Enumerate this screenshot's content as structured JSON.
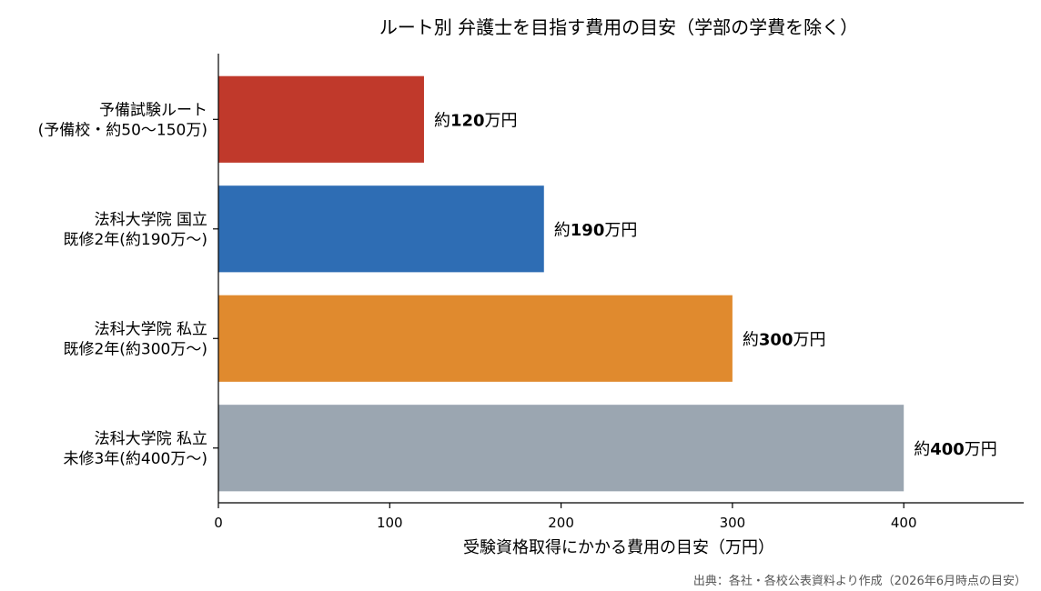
{
  "chart_data": {
    "type": "bar",
    "orientation": "horizontal",
    "title": "ルート別 弁護士を目指す費用の目安（学部の学費を除く）",
    "xlabel": "受験資格取得にかかる費用の目安（万円）",
    "ylabel": "",
    "source": "出典：各社・各校公表資料より作成（2026年6月時点の目安）",
    "categories": [
      [
        "予備試験ルート",
        "(予備校・約50〜150万)"
      ],
      [
        "法科大学院 国立",
        "既修2年(約190万〜)"
      ],
      [
        "法科大学院 私立",
        "既修2年(約300万〜)"
      ],
      [
        "法科大学院 私立",
        "未修3年(約400万〜)"
      ]
    ],
    "values": [
      120,
      190,
      300,
      400
    ],
    "data_labels": [
      {
        "prefix": "約",
        "value": "120",
        "suffix": "万円"
      },
      {
        "prefix": "約",
        "value": "190",
        "suffix": "万円"
      },
      {
        "prefix": "約",
        "value": "300",
        "suffix": "万円"
      },
      {
        "prefix": "約",
        "value": "400",
        "suffix": "万円"
      }
    ],
    "colors": [
      "#c0392b",
      "#2e6db4",
      "#e08a2e",
      "#9ba6b1"
    ],
    "xlim": [
      0,
      470
    ],
    "xticks": [
      0,
      100,
      200,
      300,
      400
    ],
    "grid": false,
    "legend": "none"
  }
}
